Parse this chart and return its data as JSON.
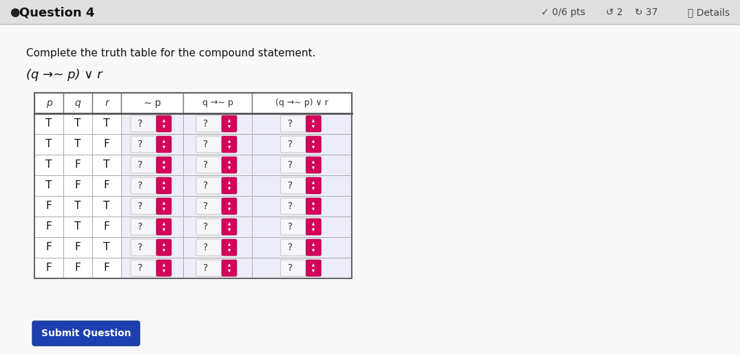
{
  "title_bullet": "●",
  "title": "Question 4",
  "title_right": "✓ 0/6 pts  ↺ 2  ↻ 37  ⓘ Details",
  "instruction": "Complete the truth table for the compound statement.",
  "formula": "(q →∼ p) ∨ r",
  "bg_color": "#e8e8e8",
  "page_bg": "#f2f2f2",
  "header_row": [
    "p",
    "q",
    "r",
    "∼ p",
    "q →∼ p",
    "(q →∼ p) ∨ r"
  ],
  "data_rows": [
    [
      "T",
      "T",
      "T"
    ],
    [
      "T",
      "T",
      "F"
    ],
    [
      "T",
      "F",
      "T"
    ],
    [
      "T",
      "F",
      "F"
    ],
    [
      "F",
      "T",
      "T"
    ],
    [
      "F",
      "T",
      "F"
    ],
    [
      "F",
      "F",
      "T"
    ],
    [
      "F",
      "F",
      "F"
    ]
  ],
  "submit_btn_color": "#1e3fb0",
  "submit_btn_text": "Submit Question",
  "spinner_color": "#d4005a",
  "cell_bg_white": "#ffffff",
  "cell_bg_light": "#ecedf8",
  "header_text_color": "#333333",
  "data_text_color": "#111111",
  "border_dark": "#777777",
  "border_light": "#aaaaaa",
  "input_box_bg": "#f5f5fa",
  "input_box_border": "#cccccc"
}
